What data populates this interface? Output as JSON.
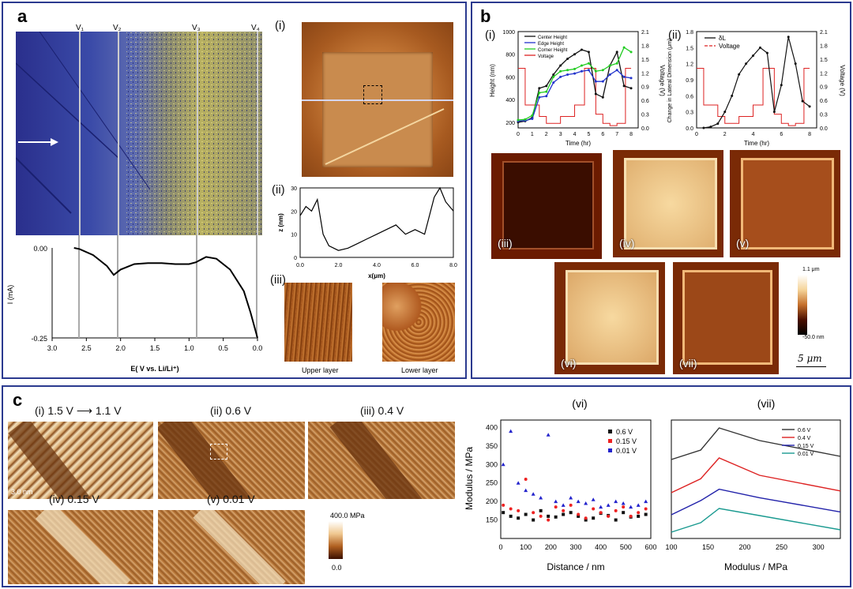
{
  "panels": {
    "a": {
      "label": "a",
      "voltage_markers": [
        "V₁",
        "V₂",
        "V₃",
        "V₄"
      ],
      "cv": {
        "ylabel": "I (mA)",
        "xlabel": "E( V vs. Li/Li⁺)",
        "y_ticks": [
          "0.00",
          "-0.25"
        ],
        "x_ticks": [
          "3.0",
          "2.5",
          "2.0",
          "1.5",
          "1.0",
          "0.5",
          "0.0"
        ]
      },
      "sub_i": "(i)",
      "sub_ii": "(ii)",
      "sub_iii": "(iii)",
      "profile": {
        "ylabel": "z (nm)",
        "xlabel": "x(μm)",
        "y_ticks": [
          "30",
          "20",
          "10",
          "0"
        ],
        "x_ticks": [
          "0.0",
          "2.0",
          "4.0",
          "6.0",
          "8.0"
        ]
      },
      "upper_layer": "Upper layer",
      "lower_layer": "Lower layer"
    },
    "b": {
      "label": "b",
      "sub_i": "(i)",
      "sub_ii": "(ii)",
      "height_chart": {
        "ylabel": "Height (nm)",
        "y2label": "Voltage (V)",
        "xlabel": "Time (hr)",
        "y_ticks": [
          "1000",
          "800",
          "600",
          "400",
          "200"
        ],
        "y2_ticks": [
          "2.1",
          "1.8",
          "1.5",
          "1.2",
          "0.9",
          "0.6",
          "0.3",
          "0.0"
        ],
        "x_ticks": [
          "0",
          "1",
          "2",
          "3",
          "4",
          "5",
          "6",
          "7",
          "8"
        ],
        "legend": [
          "Center Height",
          "Edge Height",
          "Corner Height",
          "Voltage"
        ]
      },
      "dl_chart": {
        "ylabel": "Change in Lateral Dimension (μm)",
        "y2label": "Voltage (V)",
        "xlabel": "Time (hr)",
        "y_ticks": [
          "1.8",
          "1.5",
          "1.2",
          "0.9",
          "0.6",
          "0.3",
          "0.0"
        ],
        "y2_ticks": [
          "2.1",
          "1.8",
          "1.5",
          "1.2",
          "0.9",
          "0.6",
          "0.3",
          "0.0"
        ],
        "x_ticks": [
          "0",
          "2",
          "4",
          "6",
          "8"
        ],
        "legend": [
          "δL",
          "Voltage"
        ]
      },
      "images": [
        "(iii)",
        "(iv)",
        "(v)",
        "(vi)",
        "(vii)"
      ],
      "colorbar_top": "1.1 μm",
      "colorbar_bottom": "-50.0 nm",
      "scalebar": "5 μm"
    },
    "c": {
      "label": "c",
      "images": [
        {
          "label": "(i) 1.5 V",
          "arrow_to": "1.1 V"
        },
        {
          "label": "(ii) 0.6 V"
        },
        {
          "label": "(iii) 0.4 V"
        },
        {
          "label": "(iv)  0.15 V"
        },
        {
          "label": "(v)  0.01 V"
        }
      ],
      "scale": "3.0 nm",
      "colorbar_top": "400.0 MPa",
      "colorbar_bottom": "0.0",
      "chart_vi": {
        "title": "(vi)",
        "ylabel": "Modulus / MPa",
        "xlabel": "Distance / nm",
        "y_ticks": [
          "400",
          "350",
          "300",
          "250",
          "200",
          "150"
        ],
        "x_ticks": [
          "0",
          "100",
          "200",
          "300",
          "400",
          "500",
          "600"
        ],
        "legend": [
          "0.6 V",
          "0.15 V",
          "0.01 V"
        ]
      },
      "chart_vii": {
        "title": "(vii)",
        "xlabel": "Modulus / MPa",
        "x_ticks": [
          "100",
          "150",
          "200",
          "250",
          "300"
        ],
        "legend": [
          "0.6 V",
          "0.4 V",
          "0.15 V",
          "0.01 V"
        ]
      }
    }
  },
  "chart_data": [
    {
      "type": "line",
      "ylabel": "I (mA)",
      "xlabel": "E( V vs. Li/Li⁺)",
      "x": [
        2.68,
        2.6,
        2.4,
        2.2,
        2.1,
        2.0,
        1.8,
        1.6,
        1.4,
        1.2,
        1.0,
        0.9,
        0.75,
        0.6,
        0.4,
        0.2,
        0.1,
        0.0
      ],
      "y": [
        0.0,
        -0.003,
        -0.02,
        -0.05,
        -0.075,
        -0.06,
        -0.045,
        -0.042,
        -0.042,
        -0.045,
        -0.045,
        -0.04,
        -0.025,
        -0.03,
        -0.06,
        -0.12,
        -0.18,
        -0.25
      ],
      "ylim": [
        -0.25,
        0.0
      ],
      "xlim": [
        3.0,
        0.0
      ]
    },
    {
      "type": "line",
      "ylabel": "z (nm)",
      "xlabel": "x(μm)",
      "x": [
        0,
        0.3,
        0.6,
        0.9,
        1.2,
        1.5,
        2.0,
        2.5,
        3.0,
        3.5,
        4.0,
        4.5,
        5.0,
        5.5,
        6.0,
        6.5,
        7.0,
        7.3,
        7.6,
        8.0
      ],
      "y": [
        18,
        22,
        20,
        25,
        10,
        5,
        3,
        4,
        6,
        8,
        10,
        12,
        14,
        10,
        12,
        10,
        26,
        30,
        24,
        20
      ],
      "xlim": [
        0,
        8
      ],
      "ylim": [
        0,
        30
      ]
    },
    {
      "type": "line",
      "xlabel": "Time (hr)",
      "ylabel": "Height (nm)",
      "x": [
        0,
        0.5,
        1,
        1.5,
        2,
        2.5,
        3,
        3.5,
        4,
        4.5,
        5,
        5.5,
        6,
        6.5,
        7,
        7.5,
        8
      ],
      "series": [
        {
          "name": "Center Height",
          "values": [
            200,
            210,
            240,
            500,
            520,
            620,
            700,
            760,
            800,
            840,
            820,
            450,
            420,
            700,
            820,
            520,
            500
          ]
        },
        {
          "name": "Edge Height",
          "values": [
            210,
            215,
            230,
            420,
            430,
            550,
            600,
            620,
            630,
            650,
            660,
            560,
            560,
            620,
            660,
            600,
            590
          ]
        },
        {
          "name": "Corner Height",
          "values": [
            220,
            225,
            260,
            460,
            470,
            600,
            650,
            660,
            670,
            700,
            720,
            650,
            660,
            700,
            720,
            860,
            820
          ]
        }
      ],
      "ylim": [
        150,
        1000
      ],
      "xlim": [
        0,
        8.5
      ]
    },
    {
      "type": "line",
      "xlabel": "Time (hr)",
      "ylabel": "Change in Lateral Dimension (μm)",
      "x": [
        0.5,
        1,
        1.5,
        2,
        2.5,
        3,
        3.5,
        4,
        4.5,
        5,
        5.5,
        6,
        6.5,
        7,
        7.5,
        8
      ],
      "series": [
        {
          "name": "δL",
          "values": [
            0.0,
            0.02,
            0.08,
            0.3,
            0.6,
            1.0,
            1.2,
            1.35,
            1.5,
            1.4,
            0.3,
            0.8,
            1.7,
            1.2,
            0.5,
            0.4
          ]
        }
      ],
      "ylim": [
        0,
        1.8
      ],
      "xlim": [
        0,
        8.5
      ]
    },
    {
      "type": "scatter",
      "xlabel": "Distance / nm",
      "ylabel": "Modulus / MPa",
      "xlim": [
        0,
        600
      ],
      "ylim": [
        100,
        420
      ],
      "series": [
        {
          "name": "0.6 V",
          "values": [
            170,
            160,
            155,
            165,
            150,
            175,
            160,
            158,
            165,
            170,
            160,
            150,
            155,
            168,
            162,
            150,
            170,
            158,
            160,
            165
          ]
        },
        {
          "name": "0.15 V",
          "values": [
            190,
            180,
            175,
            260,
            170,
            160,
            150,
            185,
            175,
            190,
            165,
            155,
            180,
            170,
            160,
            175,
            185,
            160,
            170,
            180
          ]
        },
        {
          "name": "0.01 V",
          "values": [
            300,
            390,
            250,
            230,
            220,
            210,
            380,
            200,
            190,
            210,
            200,
            195,
            205,
            185,
            190,
            200,
            195,
            185,
            190,
            200
          ]
        }
      ]
    },
    {
      "type": "line",
      "xlabel": "Modulus / MPa",
      "xlim": [
        100,
        330
      ],
      "series": [
        {
          "name": "0.6 V",
          "values": [
            0.0,
            0.3,
            1.0,
            0.6,
            0.1
          ]
        },
        {
          "name": "0.4 V",
          "values": [
            0.0,
            0.4,
            1.0,
            0.5,
            0.05
          ]
        },
        {
          "name": "0.15 V",
          "values": [
            0.0,
            0.5,
            0.9,
            0.6,
            0.1
          ]
        },
        {
          "name": "0.01 V",
          "values": [
            0.0,
            0.4,
            1.0,
            0.7,
            0.1
          ]
        }
      ]
    }
  ]
}
